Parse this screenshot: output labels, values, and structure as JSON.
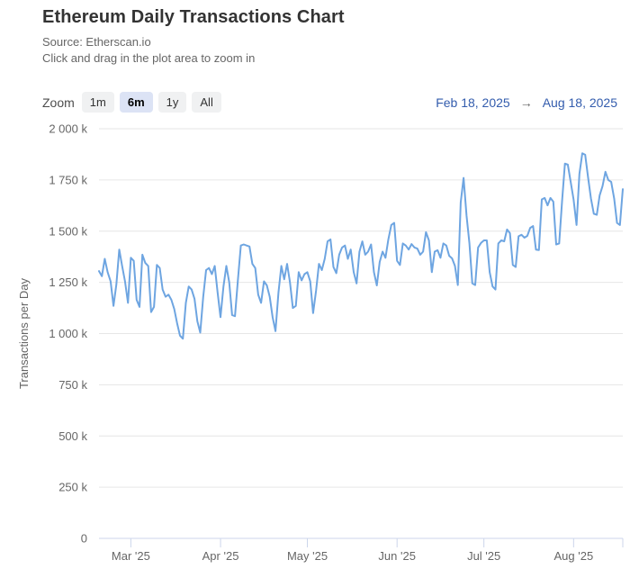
{
  "header": {
    "title": "Ethereum Daily Transactions Chart",
    "subtitle_source": "Source: Etherscan.io",
    "subtitle_hint": "Click and drag in the plot area to zoom in"
  },
  "range_selector": {
    "zoom_label": "Zoom",
    "buttons": [
      {
        "label": "1m",
        "selected": false
      },
      {
        "label": "6m",
        "selected": true
      },
      {
        "label": "1y",
        "selected": false
      },
      {
        "label": "All",
        "selected": false
      }
    ],
    "from_date": "Feb 18, 2025",
    "arrow": "→",
    "to_date": "Aug 18, 2025"
  },
  "colors": {
    "series_line": "#6EA5E1",
    "grid_line": "#e6e6e6",
    "axis_line": "#ccd6eb",
    "tick_label": "#666666",
    "axis_title": "#666666"
  },
  "chart_data": {
    "type": "line",
    "title": "Ethereum Daily Transactions",
    "xlabel": "",
    "ylabel": "Transactions per Day",
    "unit": "k (thousand transactions per day)",
    "x_range": {
      "from": "Feb 18, 2025",
      "to": "Aug 18, 2025",
      "resolution": "daily"
    },
    "ylim": [
      0,
      2000
    ],
    "grid": true,
    "legend": "none",
    "y_ticks": [
      {
        "value": 0,
        "label": "0"
      },
      {
        "value": 250,
        "label": "250 k"
      },
      {
        "value": 500,
        "label": "500 k"
      },
      {
        "value": 750,
        "label": "750 k"
      },
      {
        "value": 1000,
        "label": "1 000 k"
      },
      {
        "value": 1250,
        "label": "1 250 k"
      },
      {
        "value": 1500,
        "label": "1 500 k"
      },
      {
        "value": 1750,
        "label": "1 750 k"
      },
      {
        "value": 2000,
        "label": "2 000 k"
      }
    ],
    "x_ticks": [
      {
        "label": "Mar '25",
        "day_index": 11
      },
      {
        "label": "Apr '25",
        "day_index": 42
      },
      {
        "label": "May '25",
        "day_index": 72
      },
      {
        "label": "Jun '25",
        "day_index": 103
      },
      {
        "label": "Jul '25",
        "day_index": 133
      },
      {
        "label": "Aug '25",
        "day_index": 164
      },
      {
        "label": "",
        "day_index": 181
      }
    ],
    "series": [
      {
        "name": "Transactions per Day",
        "values_unit": "k",
        "values": [
          1305,
          1280,
          1365,
          1300,
          1255,
          1135,
          1240,
          1410,
          1330,
          1255,
          1150,
          1370,
          1355,
          1165,
          1130,
          1385,
          1345,
          1330,
          1105,
          1130,
          1335,
          1320,
          1215,
          1180,
          1190,
          1165,
          1120,
          1050,
          990,
          975,
          1150,
          1230,
          1215,
          1170,
          1060,
          1005,
          1180,
          1310,
          1320,
          1290,
          1330,
          1200,
          1080,
          1230,
          1330,
          1250,
          1090,
          1085,
          1260,
          1430,
          1435,
          1430,
          1425,
          1340,
          1320,
          1190,
          1150,
          1255,
          1235,
          1180,
          1080,
          1012,
          1200,
          1330,
          1265,
          1340,
          1250,
          1125,
          1135,
          1300,
          1260,
          1290,
          1300,
          1255,
          1100,
          1210,
          1340,
          1310,
          1365,
          1450,
          1460,
          1325,
          1295,
          1385,
          1420,
          1430,
          1365,
          1410,
          1300,
          1245,
          1400,
          1450,
          1385,
          1400,
          1435,
          1300,
          1235,
          1350,
          1400,
          1370,
          1460,
          1530,
          1540,
          1355,
          1335,
          1440,
          1430,
          1410,
          1437,
          1420,
          1415,
          1385,
          1400,
          1495,
          1455,
          1300,
          1400,
          1407,
          1370,
          1440,
          1430,
          1380,
          1367,
          1330,
          1237,
          1640,
          1760,
          1575,
          1440,
          1245,
          1237,
          1420,
          1442,
          1455,
          1455,
          1300,
          1230,
          1215,
          1440,
          1455,
          1450,
          1508,
          1490,
          1335,
          1325,
          1475,
          1482,
          1468,
          1477,
          1516,
          1525,
          1410,
          1408,
          1655,
          1662,
          1626,
          1662,
          1644,
          1435,
          1440,
          1645,
          1830,
          1825,
          1740,
          1655,
          1530,
          1780,
          1880,
          1873,
          1763,
          1660,
          1585,
          1580,
          1675,
          1720,
          1790,
          1750,
          1740,
          1660,
          1540,
          1530,
          1705
        ]
      }
    ]
  }
}
